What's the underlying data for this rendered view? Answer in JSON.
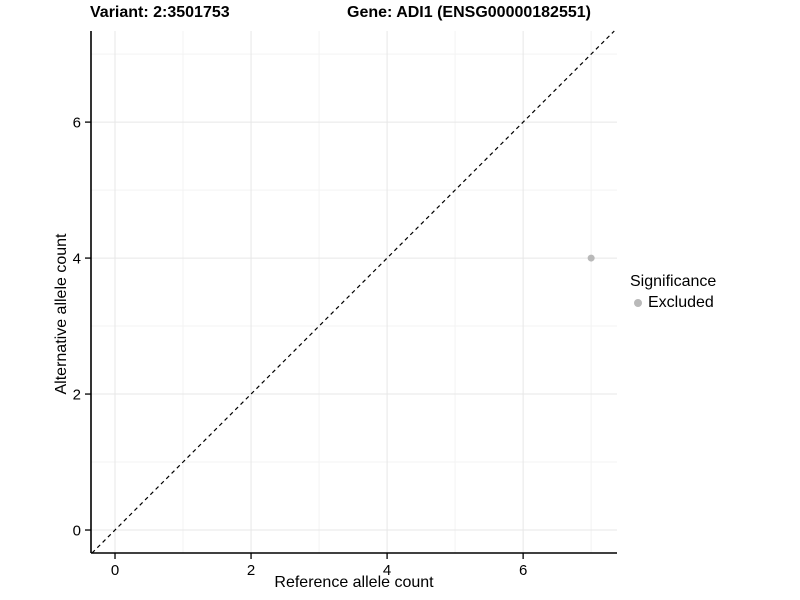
{
  "chart_data": {
    "type": "scatter",
    "titles": {
      "left": "Variant: 2:3501753",
      "right": "Gene: ADI1 (ENSG00000182551)"
    },
    "xlabel": "Reference allele count",
    "ylabel": "Alternative allele count",
    "x_ticks": [
      0,
      2,
      4,
      6
    ],
    "y_ticks": [
      0,
      2,
      4,
      6
    ],
    "x_minor": [
      1,
      3,
      5,
      7
    ],
    "y_minor": [
      1,
      3,
      5,
      7
    ],
    "xlim": [
      -0.353,
      7.38
    ],
    "ylim": [
      -0.338,
      7.34
    ],
    "grid": true,
    "points": [
      {
        "x": 7,
        "y": 4,
        "series": "Excluded"
      }
    ],
    "identity_line": {
      "equation": "y = x",
      "style": "dashed",
      "color": "#000000"
    },
    "legend": {
      "title": "Significance",
      "position": "right",
      "items": [
        {
          "label": "Excluded",
          "color": "#b9b9b9"
        }
      ]
    },
    "colors": {
      "axis": "#000000",
      "grid_major": "#e7e7e7",
      "grid_minor": "#f3f3f3",
      "point_excluded": "#b9b9b9"
    }
  }
}
